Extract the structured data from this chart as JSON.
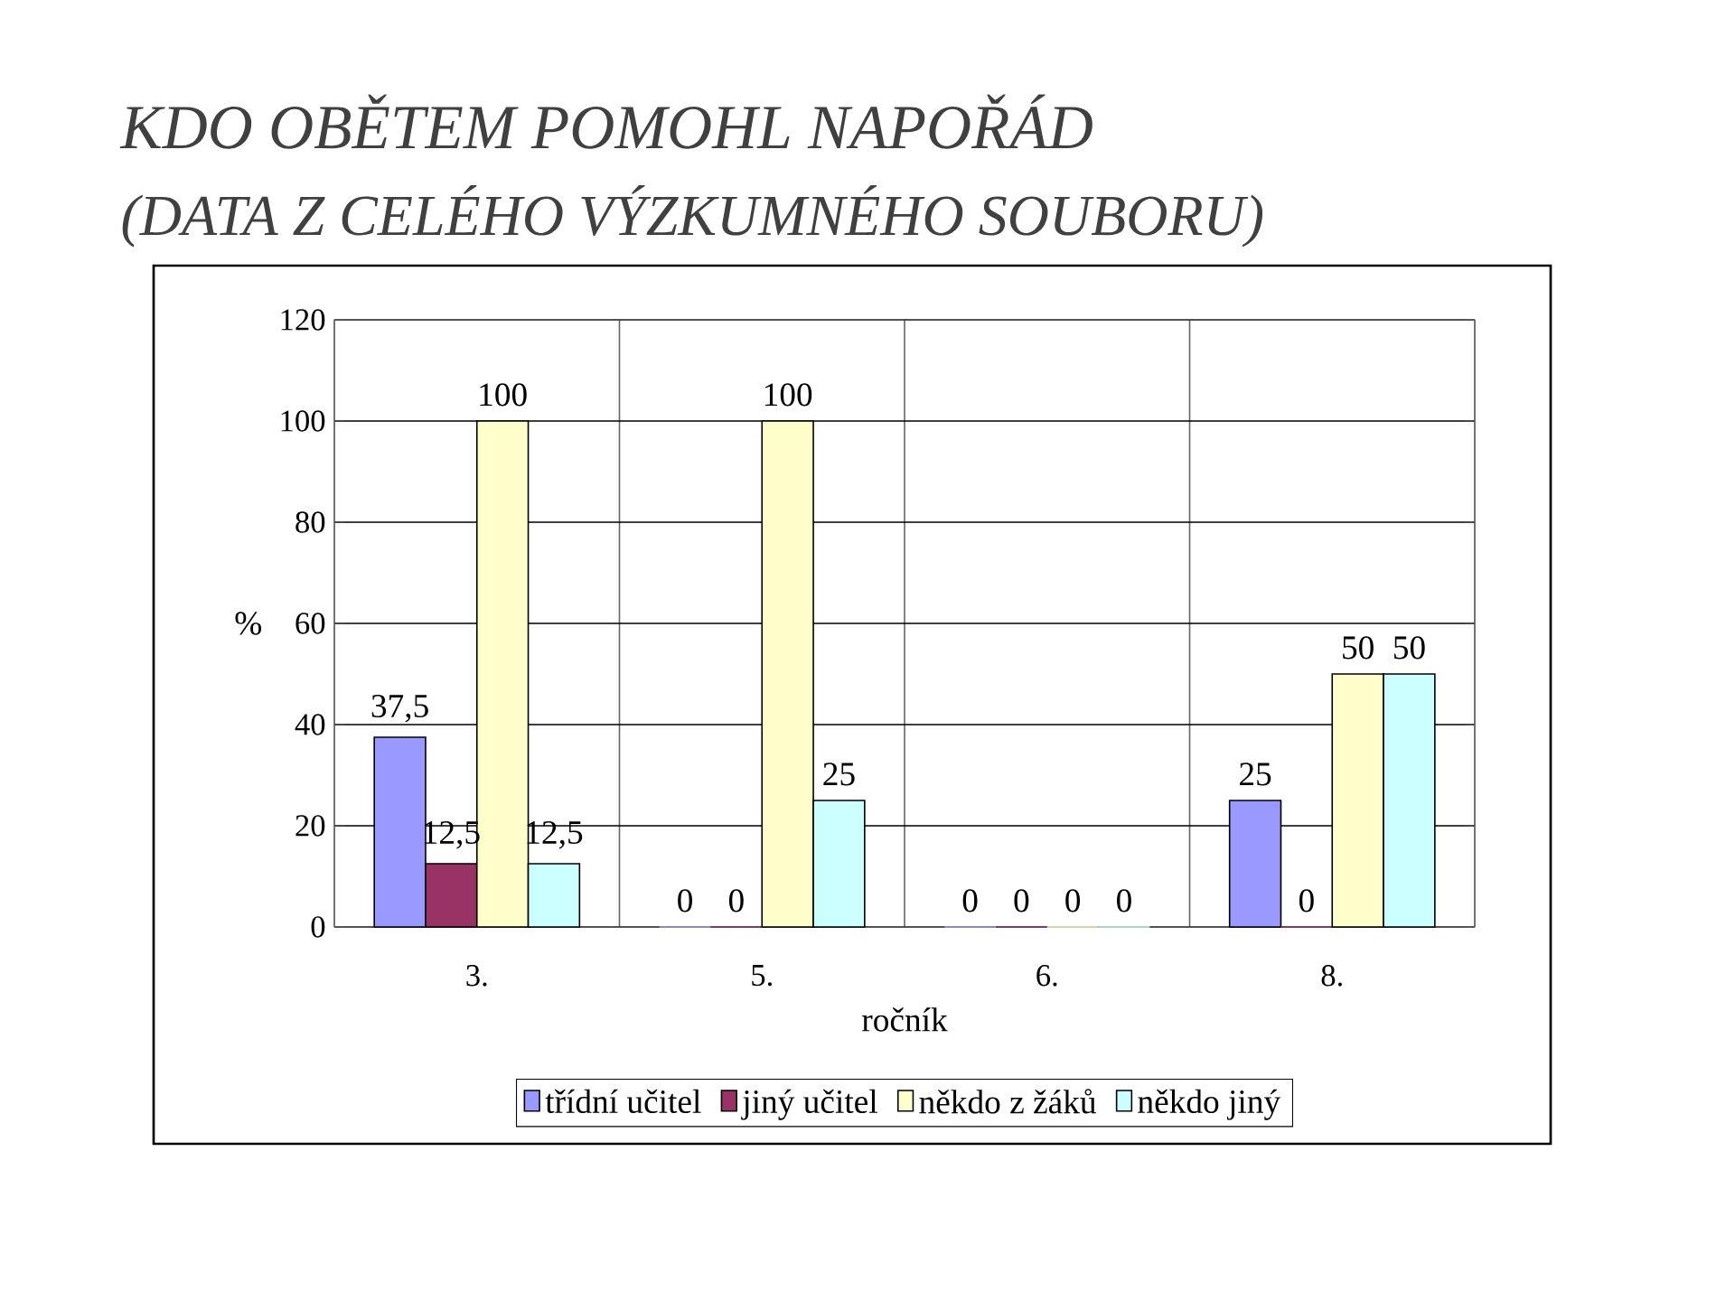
{
  "chart_data": {
    "type": "bar",
    "title": "KDO OBĚTEM POMOHL NAPOŘÁD",
    "subtitle": "(DATA Z CELÉHO VÝZKUMNÉHO SOUBORU)",
    "xlabel": "ročník",
    "ylabel": "%",
    "categories": [
      "3.",
      "5.",
      "6.",
      "8."
    ],
    "series": [
      {
        "name": "třídní učitel",
        "color": "#9999ff",
        "values": [
          37.5,
          0,
          0,
          25
        ],
        "value_labels": [
          "37,5",
          "0",
          "0",
          "25"
        ]
      },
      {
        "name": "jiný učitel",
        "color": "#993366",
        "values": [
          12.5,
          0,
          0,
          0
        ],
        "value_labels": [
          "12,5",
          "0",
          "0",
          "0"
        ]
      },
      {
        "name": "někdo z žáků",
        "color": "#ffffcc",
        "values": [
          100,
          100,
          0,
          50
        ],
        "value_labels": [
          "100",
          "100",
          "0",
          "50"
        ]
      },
      {
        "name": "někdo jiný",
        "color": "#ccffff",
        "values": [
          12.5,
          25,
          0,
          50
        ],
        "value_labels": [
          "12,5",
          "25",
          "0",
          "50"
        ]
      }
    ],
    "ylim": [
      0,
      120
    ],
    "yticks": [
      0,
      20,
      40,
      60,
      80,
      100,
      120
    ],
    "grid": true,
    "legend": "bottom"
  }
}
